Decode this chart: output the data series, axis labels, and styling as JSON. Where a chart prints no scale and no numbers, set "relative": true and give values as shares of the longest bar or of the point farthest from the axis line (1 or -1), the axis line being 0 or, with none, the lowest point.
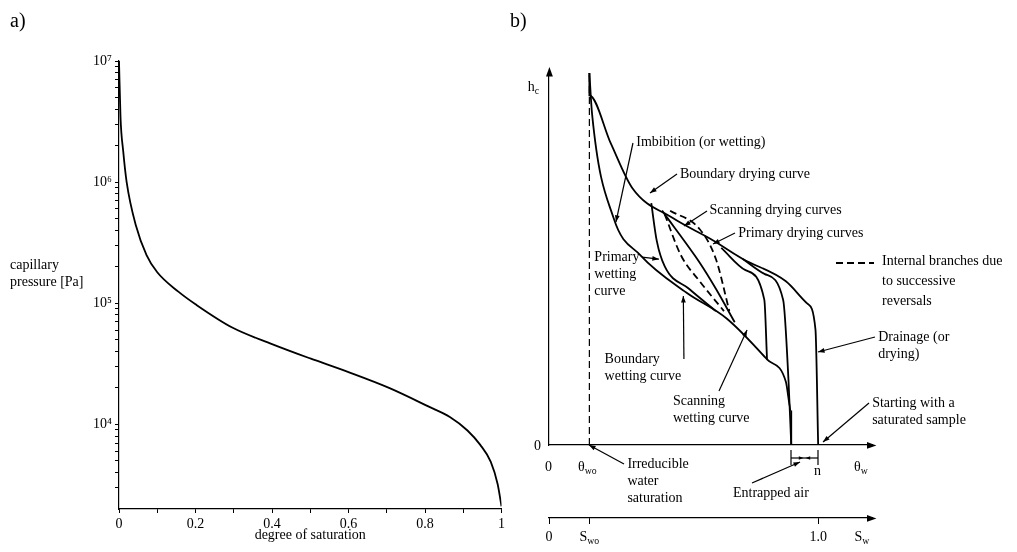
{
  "chart_data": [
    {
      "type": "line",
      "title": "a)",
      "xlabel": "degree of saturation",
      "ylabel": "capillary pressure [Pa]",
      "x": [
        0,
        0.004,
        0.011,
        0.02,
        0.044,
        0.072,
        0.1,
        0.156,
        0.2,
        0.296,
        0.4,
        0.5,
        0.6,
        0.706,
        0.81,
        0.865,
        0.911,
        0.944,
        0.972,
        0.99,
        1.0
      ],
      "series": [
        {
          "color": "#000000",
          "values": [
            10000000,
            3400000,
            1800000,
            1000000,
            440000,
            250000,
            180000,
            124000,
            98000,
            63000,
            46000,
            35000,
            27000,
            20000,
            14000,
            11500,
            8900,
            6800,
            4900,
            3200,
            2100
          ]
        }
      ],
      "xlim": [
        0,
        1
      ],
      "xticks": [
        0,
        {
          "value": 0.1,
          "label": null
        },
        0.2,
        {
          "value": 0.3,
          "label": null
        },
        0.4,
        {
          "value": 0.5,
          "label": null
        },
        0.6,
        {
          "value": 0.7,
          "label": null
        },
        0.8,
        {
          "value": 0.9,
          "label": null
        },
        1
      ],
      "ylim": [
        2000,
        10000000
      ],
      "yticks": [
        {
          "value": 3000,
          "label": null
        },
        {
          "value": 4000,
          "label": null
        },
        {
          "value": 5000,
          "label": null
        },
        {
          "value": 6000,
          "label": null
        },
        {
          "value": 7000,
          "label": null
        },
        {
          "value": 8000,
          "label": null
        },
        {
          "value": 9000,
          "label": null
        },
        {
          "value": 10000,
          "label": "10⁴"
        },
        {
          "value": 20000,
          "label": null
        },
        {
          "value": 30000,
          "label": null
        },
        {
          "value": 40000,
          "label": null
        },
        {
          "value": 50000,
          "label": null
        },
        {
          "value": 60000,
          "label": null
        },
        {
          "value": 70000,
          "label": null
        },
        {
          "value": 80000,
          "label": null
        },
        {
          "value": 90000,
          "label": null
        },
        {
          "value": 100000,
          "label": "10⁵"
        },
        {
          "value": 200000,
          "label": null
        },
        {
          "value": 300000,
          "label": null
        },
        {
          "value": 400000,
          "label": null
        },
        {
          "value": 500000,
          "label": null
        },
        {
          "value": 600000,
          "label": null
        },
        {
          "value": 700000,
          "label": null
        },
        {
          "value": 800000,
          "label": null
        },
        {
          "value": 900000,
          "label": null
        },
        {
          "value": 1000000,
          "label": "10⁶"
        },
        {
          "value": 2000000,
          "label": null
        },
        {
          "value": 3000000,
          "label": null
        },
        {
          "value": 4000000,
          "label": null
        },
        {
          "value": 5000000,
          "label": null
        },
        {
          "value": 6000000,
          "label": null
        },
        {
          "value": 7000000,
          "label": null
        },
        {
          "value": 8000000,
          "label": null
        },
        {
          "value": 9000000,
          "label": null
        },
        {
          "value": 10000000,
          "label": "10⁷"
        }
      ],
      "log": "y",
      "grid": false,
      "legend": false,
      "marker": "none",
      "line_style": "solid"
    },
    {
      "type": "line",
      "title": "b)",
      "ylabel": "h$_{c}$",
      "xlabel": "S$_{w}$",
      "relative": true,
      "xlim": [
        0,
        1.2
      ],
      "xticks": [
        0,
        {
          "value": 0.15,
          "label": "S$_{wo}$"
        },
        {
          "value": 1.0,
          "label": "1.0"
        }
      ],
      "series": [
        {
          "color": "#000000",
          "line_style": "solid",
          "x": [
            0.15,
            0.15,
            0.23,
            0.31,
            0.46,
            0.61,
            0.72,
            0.88,
            0.96,
            0.99,
            1.0
          ],
          "values": [
            1.0,
            0.94,
            0.81,
            0.69,
            0.61,
            0.55,
            0.5,
            0.44,
            0.38,
            0.31,
            0.0
          ]
        },
        {
          "color": "#000000",
          "line_style": "solid",
          "x": [
            0.15,
            0.16,
            0.24,
            0.34,
            0.51,
            0.66,
            0.81,
            0.88,
            0.9,
            0.9
          ],
          "values": [
            1.0,
            0.89,
            0.61,
            0.51,
            0.41,
            0.34,
            0.23,
            0.17,
            0.09,
            0.0
          ]
        },
        {
          "color": "#000000",
          "line_style": "solid",
          "x": [
            0.9,
            0.89,
            0.87,
            0.8,
            0.72
          ],
          "values": [
            0.0,
            0.17,
            0.39,
            0.46,
            0.5
          ]
        },
        {
          "color": "#000000",
          "line_style": "solid",
          "x": [
            0.81,
            0.8,
            0.73,
            0.64
          ],
          "values": [
            0.23,
            0.39,
            0.47,
            0.53
          ]
        },
        {
          "color": "#000000",
          "line_style": "solid",
          "x": [
            0.69,
            0.62,
            0.56,
            0.42
          ],
          "values": [
            0.33,
            0.42,
            0.49,
            0.63
          ]
        },
        {
          "color": "#000000",
          "line_style": "solid",
          "x": [
            0.38,
            0.4,
            0.43,
            0.52,
            0.62
          ],
          "values": [
            0.65,
            0.55,
            0.48,
            0.42,
            0.36
          ]
        },
        {
          "name": "Internal branches due to successive reversals",
          "color": "#000000",
          "line_style": "dashed",
          "x": [
            0.43,
            0.49,
            0.56,
            0.65
          ],
          "values": [
            0.62,
            0.51,
            0.44,
            0.36
          ]
        },
        {
          "color": "#000000",
          "line_style": "dashed",
          "x": [
            0.45,
            0.56,
            0.62,
            0.67
          ],
          "values": [
            0.63,
            0.58,
            0.5,
            0.36
          ]
        }
      ],
      "ref_lines": [
        {
          "axis": "x",
          "value": 0.15,
          "line_style": "dashed",
          "color": "#000000"
        }
      ],
      "annotations": [
        {
          "text": "Imbibition (or wetting)",
          "x": 0.25,
          "y": 0.6
        },
        "Boundary drying curve",
        {
          "text": "Scanning drying curves",
          "x": 0.5,
          "y": 0.59
        },
        {
          "text": "Primary drying curves",
          "x": 0.61,
          "y": 0.54
        },
        {
          "text": "Primary wetting curve",
          "x": 0.41,
          "y": 0.5
        },
        {
          "text": "Boundary wetting curve",
          "x": 0.5,
          "y": 0.4
        },
        "Scanning wetting curve",
        {
          "text": "Drainage (or drying)",
          "x": 1.0,
          "y": 0.25
        },
        {
          "text": "Starting with a saturated sample",
          "x": 1.0,
          "y": 0
        },
        {
          "text": "Irreducible water saturation",
          "x": 0.15,
          "y": 0
        },
        "0",
        "Entrapped air",
        "0",
        "θ$_{wo}$",
        "n",
        "θ$_{w}$"
      ],
      "legend": "right",
      "grid": false,
      "marker": "none"
    }
  ]
}
